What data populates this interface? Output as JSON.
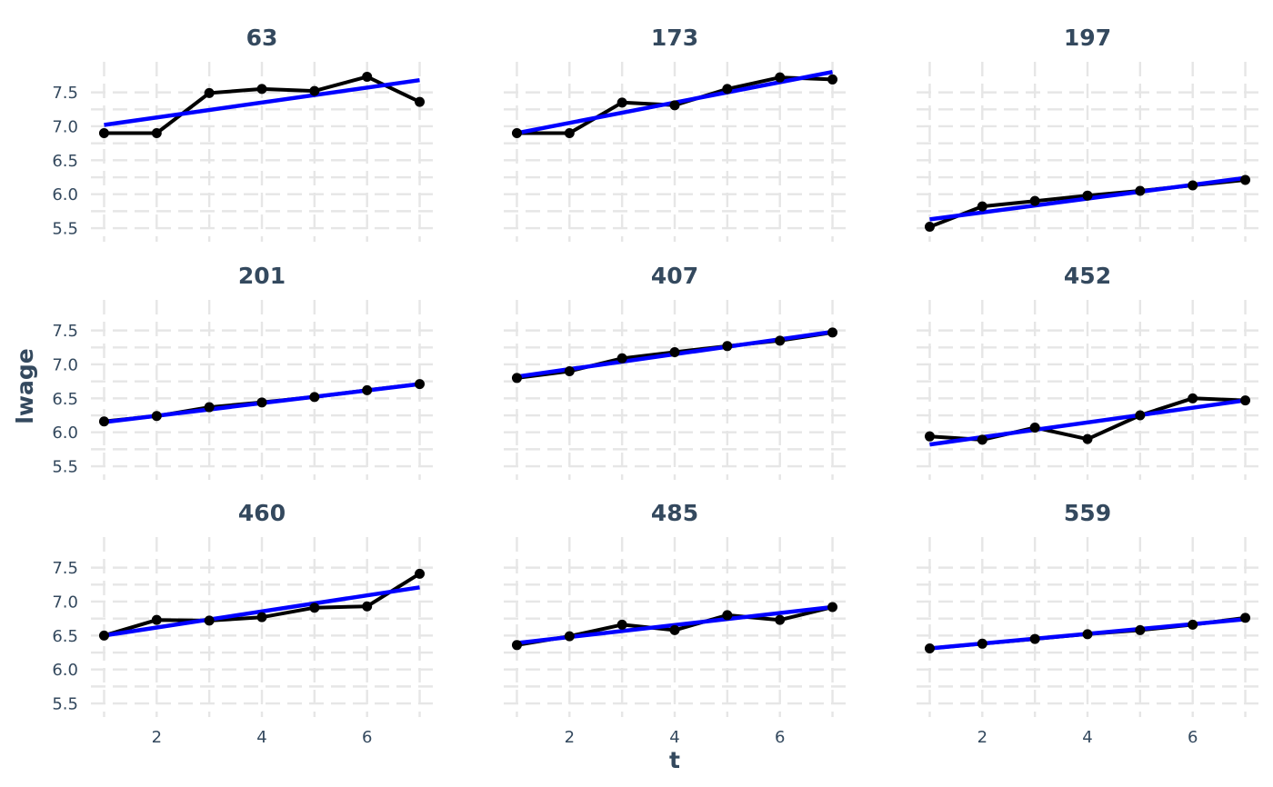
{
  "chart_data": {
    "type": "line",
    "layout": "facet-grid-3x3",
    "xlabel": "t",
    "ylabel": "lwage",
    "xlim": [
      0.75,
      7.25
    ],
    "ylim": [
      5.3,
      7.95
    ],
    "x_ticks": [
      2,
      4,
      6
    ],
    "y_ticks": [
      5.5,
      6.0,
      6.5,
      7.0,
      7.5
    ],
    "y_tick_labels": [
      "5.5",
      "6.0",
      "6.5",
      "7.0",
      "7.5"
    ],
    "grid": "dashed",
    "colors": {
      "observed": "#000000",
      "fit": "#0000ff",
      "text": "#34495e",
      "grid": "#e6e6e6"
    },
    "x": [
      1,
      2,
      3,
      4,
      5,
      6,
      7
    ],
    "panels": [
      {
        "title": "63",
        "values": [
          6.9,
          6.9,
          7.49,
          7.55,
          7.52,
          7.73,
          7.36
        ],
        "fit": [
          7.02,
          7.68
        ]
      },
      {
        "title": "173",
        "values": [
          6.9,
          6.9,
          7.35,
          7.31,
          7.55,
          7.72,
          7.69
        ],
        "fit": [
          6.9,
          7.8
        ]
      },
      {
        "title": "197",
        "values": [
          5.52,
          5.82,
          5.9,
          5.98,
          6.05,
          6.13,
          6.21
        ],
        "fit": [
          5.63,
          6.24
        ]
      },
      {
        "title": "201",
        "values": [
          6.16,
          6.24,
          6.37,
          6.44,
          6.52,
          6.62,
          6.71
        ],
        "fit": [
          6.15,
          6.71
        ]
      },
      {
        "title": "407",
        "values": [
          6.8,
          6.9,
          7.09,
          7.18,
          7.27,
          7.35,
          7.47
        ],
        "fit": [
          6.82,
          7.48
        ]
      },
      {
        "title": "452",
        "values": [
          5.94,
          5.89,
          6.07,
          5.9,
          6.25,
          6.5,
          6.47
        ],
        "fit": [
          5.82,
          6.47
        ]
      },
      {
        "title": "460",
        "values": [
          6.5,
          6.73,
          6.72,
          6.77,
          6.91,
          6.93,
          7.41
        ],
        "fit": [
          6.5,
          7.21
        ]
      },
      {
        "title": "485",
        "values": [
          6.36,
          6.49,
          6.66,
          6.58,
          6.8,
          6.73,
          6.92
        ],
        "fit": [
          6.39,
          6.92
        ]
      },
      {
        "title": "559",
        "values": [
          6.31,
          6.38,
          6.45,
          6.52,
          6.58,
          6.66,
          6.76
        ],
        "fit": [
          6.31,
          6.74
        ]
      }
    ]
  }
}
